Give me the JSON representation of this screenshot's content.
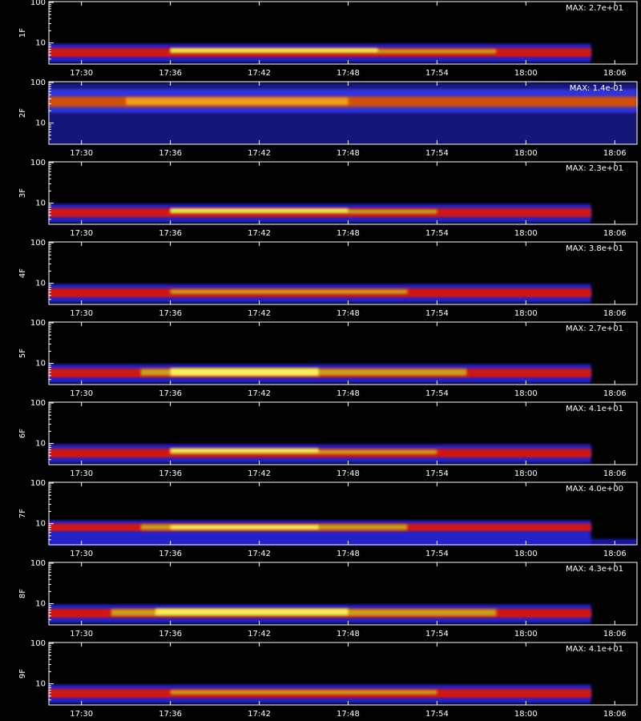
{
  "chart_data": [
    {
      "type": "spectrogram",
      "ylabel": "1F",
      "annotation": "MAX: 2.7e+01",
      "log_y": true,
      "xlim": [
        1047.8,
        1087.5
      ],
      "ylim": [
        3,
        105
      ],
      "yticks": [
        10,
        100
      ],
      "xticks": [
        {
          "value": 1050,
          "label": "17:30"
        },
        {
          "value": 1056,
          "label": "17:36"
        },
        {
          "value": 1062,
          "label": "17:42"
        },
        {
          "value": 1068,
          "label": "17:48"
        },
        {
          "value": 1074,
          "label": "17:54"
        },
        {
          "value": 1080,
          "label": "18:00"
        },
        {
          "value": 1086,
          "label": "18:06"
        }
      ],
      "bands": [
        {
          "x": [
            1047.8,
            1084.4
          ],
          "y": [
            3.3,
            9.5
          ],
          "color": "#2222c8"
        },
        {
          "x": [
            1047.8,
            1084.4
          ],
          "y": [
            4.5,
            7.5
          ],
          "color": "#d01818"
        },
        {
          "x": [
            1056,
            1078
          ],
          "y": [
            5.5,
            7
          ],
          "color": "#c8a020"
        },
        {
          "x": [
            1056,
            1070
          ],
          "y": [
            6,
            7.3
          ],
          "color": "#f8f060"
        }
      ]
    },
    {
      "type": "spectrogram",
      "ylabel": "2F",
      "annotation": "MAX: 1.4e-01",
      "log_y": true,
      "xlim": [
        1047.8,
        1087.5
      ],
      "ylim": [
        3,
        105
      ],
      "yticks": [
        10,
        100
      ],
      "xticks": [
        {
          "value": 1050,
          "label": "17:30"
        },
        {
          "value": 1056,
          "label": "17:36"
        },
        {
          "value": 1062,
          "label": "17:42"
        },
        {
          "value": 1068,
          "label": "17:48"
        },
        {
          "value": 1074,
          "label": "17:54"
        },
        {
          "value": 1080,
          "label": "18:00"
        },
        {
          "value": 1086,
          "label": "18:06"
        }
      ],
      "bands": [
        {
          "x": [
            1047.8,
            1087.5
          ],
          "y": [
            3,
            100
          ],
          "color": "#12127a"
        },
        {
          "x": [
            1047.8,
            1087.5
          ],
          "y": [
            18,
            70
          ],
          "color": "#3030d8"
        },
        {
          "x": [
            1047.8,
            1087.5
          ],
          "y": [
            25,
            45
          ],
          "color": "#d05010"
        },
        {
          "x": [
            1053,
            1068
          ],
          "y": [
            28,
            42
          ],
          "color": "#f0a020"
        }
      ]
    },
    {
      "type": "spectrogram",
      "ylabel": "3F",
      "annotation": "MAX: 2.3e+01",
      "log_y": true,
      "xlim": [
        1047.8,
        1087.5
      ],
      "ylim": [
        3,
        105
      ],
      "yticks": [
        10,
        100
      ],
      "xticks": [
        {
          "value": 1050,
          "label": "17:30"
        },
        {
          "value": 1056,
          "label": "17:36"
        },
        {
          "value": 1062,
          "label": "17:42"
        },
        {
          "value": 1068,
          "label": "17:48"
        },
        {
          "value": 1074,
          "label": "17:54"
        },
        {
          "value": 1080,
          "label": "18:00"
        },
        {
          "value": 1086,
          "label": "18:06"
        }
      ],
      "bands": [
        {
          "x": [
            1047.8,
            1084.4
          ],
          "y": [
            3.3,
            9.5
          ],
          "color": "#2222c8"
        },
        {
          "x": [
            1047.8,
            1084.4
          ],
          "y": [
            4.5,
            7.5
          ],
          "color": "#d01818"
        },
        {
          "x": [
            1056,
            1074
          ],
          "y": [
            5.5,
            7
          ],
          "color": "#c8a020"
        },
        {
          "x": [
            1056,
            1068
          ],
          "y": [
            6,
            7.3
          ],
          "color": "#f8f060"
        }
      ]
    },
    {
      "type": "spectrogram",
      "ylabel": "4F",
      "annotation": "MAX: 3.8e+01",
      "log_y": true,
      "xlim": [
        1047.8,
        1087.5
      ],
      "ylim": [
        3,
        105
      ],
      "yticks": [
        10,
        100
      ],
      "xticks": [
        {
          "value": 1050,
          "label": "17:30"
        },
        {
          "value": 1056,
          "label": "17:36"
        },
        {
          "value": 1062,
          "label": "17:42"
        },
        {
          "value": 1068,
          "label": "17:48"
        },
        {
          "value": 1074,
          "label": "17:54"
        },
        {
          "value": 1080,
          "label": "18:00"
        },
        {
          "value": 1086,
          "label": "18:06"
        }
      ],
      "bands": [
        {
          "x": [
            1047.8,
            1084.4
          ],
          "y": [
            3.3,
            9.5
          ],
          "color": "#2222c8"
        },
        {
          "x": [
            1047.8,
            1084.4
          ],
          "y": [
            4.5,
            7.5
          ],
          "color": "#d01818"
        },
        {
          "x": [
            1056,
            1072
          ],
          "y": [
            5.5,
            7
          ],
          "color": "#c8a020"
        }
      ]
    },
    {
      "type": "spectrogram",
      "ylabel": "5F",
      "annotation": "MAX: 2.7e+01",
      "log_y": true,
      "xlim": [
        1047.8,
        1087.5
      ],
      "ylim": [
        3,
        105
      ],
      "yticks": [
        10,
        100
      ],
      "xticks": [
        {
          "value": 1050,
          "label": "17:30"
        },
        {
          "value": 1056,
          "label": "17:36"
        },
        {
          "value": 1062,
          "label": "17:42"
        },
        {
          "value": 1068,
          "label": "17:48"
        },
        {
          "value": 1074,
          "label": "17:54"
        },
        {
          "value": 1080,
          "label": "18:00"
        },
        {
          "value": 1086,
          "label": "18:06"
        }
      ],
      "bands": [
        {
          "x": [
            1047.8,
            1084.4
          ],
          "y": [
            3.3,
            9.5
          ],
          "color": "#2222c8"
        },
        {
          "x": [
            1047.8,
            1084.4
          ],
          "y": [
            4.5,
            7.5
          ],
          "color": "#d01818"
        },
        {
          "x": [
            1054,
            1076
          ],
          "y": [
            5,
            7.3
          ],
          "color": "#c8a020"
        },
        {
          "x": [
            1056,
            1066
          ],
          "y": [
            5,
            7.5
          ],
          "color": "#f8f060"
        }
      ]
    },
    {
      "type": "spectrogram",
      "ylabel": "6F",
      "annotation": "MAX: 4.1e+01",
      "log_y": true,
      "xlim": [
        1047.8,
        1087.5
      ],
      "ylim": [
        3,
        105
      ],
      "yticks": [
        10,
        100
      ],
      "xticks": [
        {
          "value": 1050,
          "label": "17:30"
        },
        {
          "value": 1056,
          "label": "17:36"
        },
        {
          "value": 1062,
          "label": "17:42"
        },
        {
          "value": 1068,
          "label": "17:48"
        },
        {
          "value": 1074,
          "label": "17:54"
        },
        {
          "value": 1080,
          "label": "18:00"
        },
        {
          "value": 1086,
          "label": "18:06"
        }
      ],
      "bands": [
        {
          "x": [
            1047.8,
            1084.4
          ],
          "y": [
            3.3,
            9.5
          ],
          "color": "#2222c8"
        },
        {
          "x": [
            1047.8,
            1084.4
          ],
          "y": [
            4.5,
            7.5
          ],
          "color": "#d01818"
        },
        {
          "x": [
            1056,
            1074
          ],
          "y": [
            5.5,
            7
          ],
          "color": "#c8a020"
        },
        {
          "x": [
            1056,
            1066
          ],
          "y": [
            6,
            7.5
          ],
          "color": "#f8f060"
        }
      ]
    },
    {
      "type": "spectrogram",
      "ylabel": "7F",
      "annotation": "MAX: 4.0e+00",
      "log_y": true,
      "xlim": [
        1047.8,
        1087.5
      ],
      "ylim": [
        3,
        105
      ],
      "yticks": [
        10,
        100
      ],
      "xticks": [
        {
          "value": 1050,
          "label": "17:30"
        },
        {
          "value": 1056,
          "label": "17:36"
        },
        {
          "value": 1062,
          "label": "17:42"
        },
        {
          "value": 1068,
          "label": "17:48"
        },
        {
          "value": 1074,
          "label": "17:54"
        },
        {
          "value": 1080,
          "label": "18:00"
        },
        {
          "value": 1086,
          "label": "18:06"
        }
      ],
      "bands": [
        {
          "x": [
            1047.8,
            1087.5
          ],
          "y": [
            3,
            4.2
          ],
          "color": "#1818a0"
        },
        {
          "x": [
            1047.8,
            1084.4
          ],
          "y": [
            3,
            12
          ],
          "color": "#2222c8"
        },
        {
          "x": [
            1047.8,
            1084.4
          ],
          "y": [
            6.5,
            10
          ],
          "color": "#d01818"
        },
        {
          "x": [
            1054,
            1072
          ],
          "y": [
            7,
            9.5
          ],
          "color": "#c8a020"
        },
        {
          "x": [
            1056,
            1066
          ],
          "y": [
            7.3,
            9
          ],
          "color": "#f8f060"
        }
      ]
    },
    {
      "type": "spectrogram",
      "ylabel": "8F",
      "annotation": "MAX: 4.3e+01",
      "log_y": true,
      "xlim": [
        1047.8,
        1087.5
      ],
      "ylim": [
        3,
        105
      ],
      "yticks": [
        10,
        100
      ],
      "xticks": [
        {
          "value": 1050,
          "label": "17:30"
        },
        {
          "value": 1056,
          "label": "17:36"
        },
        {
          "value": 1062,
          "label": "17:42"
        },
        {
          "value": 1068,
          "label": "17:48"
        },
        {
          "value": 1074,
          "label": "17:54"
        },
        {
          "value": 1080,
          "label": "18:00"
        },
        {
          "value": 1086,
          "label": "18:06"
        }
      ],
      "bands": [
        {
          "x": [
            1047.8,
            1084.4
          ],
          "y": [
            3.3,
            9.5
          ],
          "color": "#2222c8"
        },
        {
          "x": [
            1047.8,
            1084.4
          ],
          "y": [
            4.5,
            7.5
          ],
          "color": "#d01818"
        },
        {
          "x": [
            1052,
            1078
          ],
          "y": [
            5,
            7.3
          ],
          "color": "#c8a020"
        },
        {
          "x": [
            1055,
            1068
          ],
          "y": [
            5.3,
            7.5
          ],
          "color": "#f8f060"
        }
      ]
    },
    {
      "type": "spectrogram",
      "ylabel": "9F",
      "annotation": "MAX: 4.1e+01",
      "log_y": true,
      "xlim": [
        1047.8,
        1087.5
      ],
      "ylim": [
        3,
        105
      ],
      "yticks": [
        10,
        100
      ],
      "xticks": [
        {
          "value": 1050,
          "label": "17:30"
        },
        {
          "value": 1056,
          "label": "17:36"
        },
        {
          "value": 1062,
          "label": "17:42"
        },
        {
          "value": 1068,
          "label": "17:48"
        },
        {
          "value": 1074,
          "label": "17:54"
        },
        {
          "value": 1080,
          "label": "18:00"
        },
        {
          "value": 1086,
          "label": "18:06"
        }
      ],
      "bands": [
        {
          "x": [
            1047.8,
            1084.4
          ],
          "y": [
            3.3,
            9.5
          ],
          "color": "#2222c8"
        },
        {
          "x": [
            1047.8,
            1084.4
          ],
          "y": [
            4.5,
            7.5
          ],
          "color": "#d01818"
        },
        {
          "x": [
            1056,
            1074
          ],
          "y": [
            5.5,
            7
          ],
          "color": "#c8a020"
        }
      ]
    }
  ]
}
